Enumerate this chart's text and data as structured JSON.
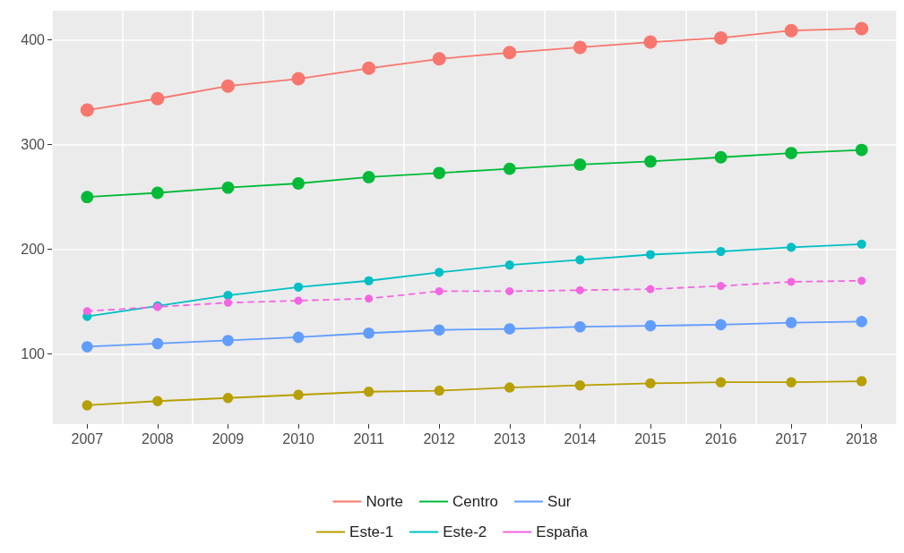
{
  "chart_data": {
    "type": "line",
    "categories": [
      "2007",
      "2008",
      "2009",
      "2010",
      "2011",
      "2012",
      "2013",
      "2014",
      "2015",
      "2016",
      "2017",
      "2018"
    ],
    "ylim": [
      33,
      428
    ],
    "yticks": [
      100,
      200,
      300,
      400
    ],
    "grid": true,
    "legend": "bottom",
    "marker": "circle",
    "line_style": "solid",
    "series": [
      {
        "name": "Norte",
        "color": "#f8766d",
        "values": [
          333,
          344,
          356,
          363,
          373,
          382,
          388,
          393,
          398,
          402,
          409,
          411
        ]
      },
      {
        "name": "Centro",
        "color": "#00ba38",
        "values": [
          250,
          254,
          259,
          263,
          269,
          273,
          277,
          281,
          284,
          288,
          292,
          295
        ]
      },
      {
        "name": "Sur",
        "color": "#619cff",
        "values": [
          107,
          110,
          113,
          116,
          120,
          123,
          124,
          126,
          127,
          128,
          130,
          131
        ]
      },
      {
        "name": "Este-1",
        "color": "#b79f00",
        "values": [
          51,
          55,
          58,
          61,
          64,
          65,
          68,
          70,
          72,
          73,
          73,
          74
        ]
      },
      {
        "name": "Este-2",
        "color": "#00bfc4",
        "values": [
          136,
          146,
          156,
          164,
          170,
          178,
          185,
          190,
          195,
          198,
          202,
          205
        ]
      },
      {
        "name": "España",
        "color": "#f564e3",
        "line_style": "dashed",
        "values": [
          141,
          145,
          149,
          151,
          153,
          160,
          160,
          161,
          162,
          165,
          169,
          170
        ]
      }
    ]
  }
}
